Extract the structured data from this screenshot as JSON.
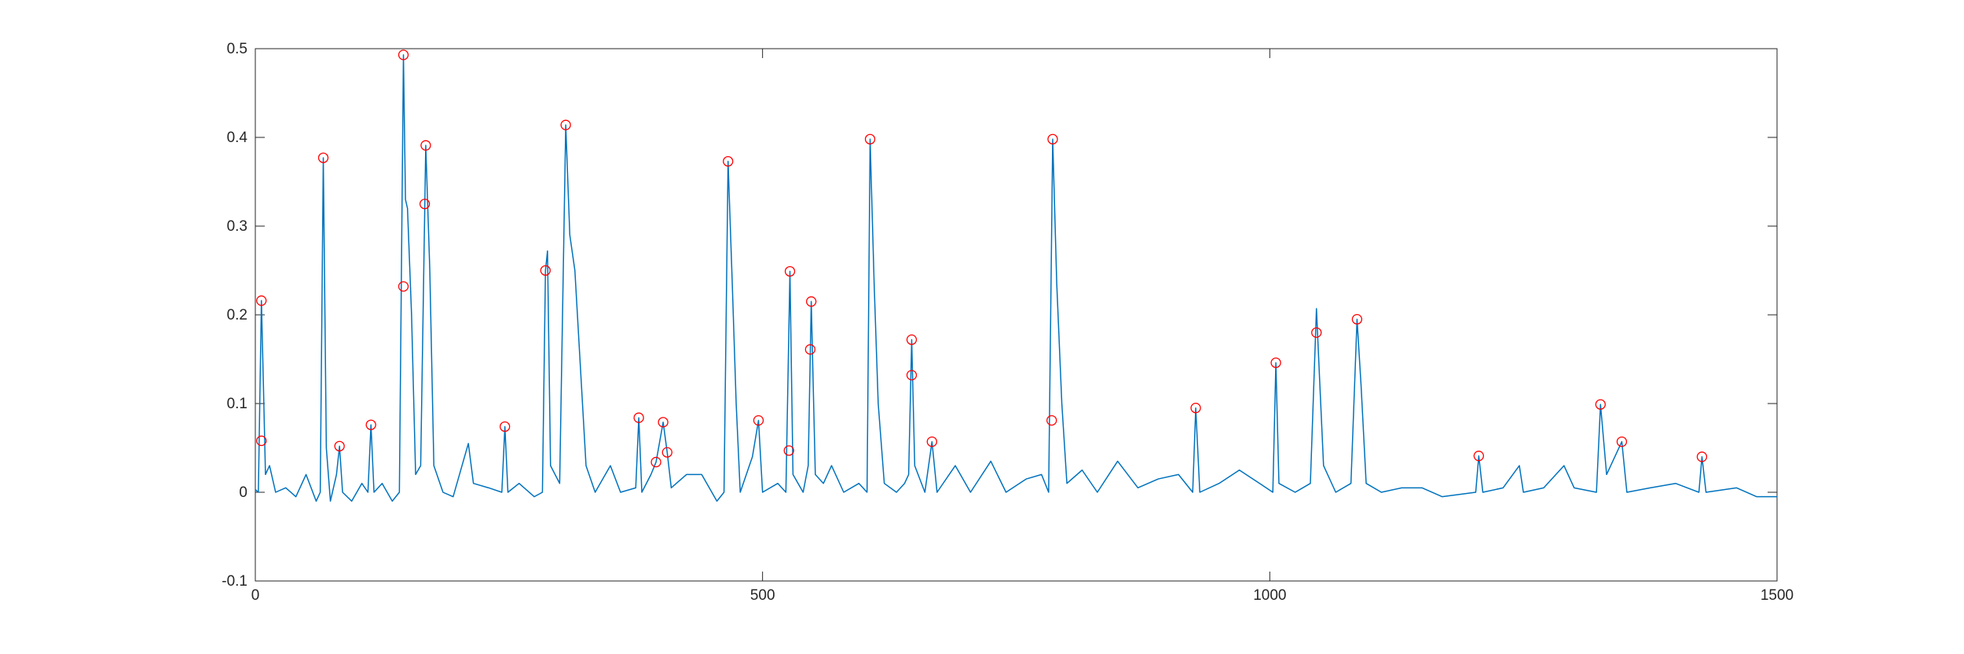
{
  "chart_data": {
    "type": "line",
    "xlim": [
      0,
      1500
    ],
    "xticks": [
      0,
      500,
      1000,
      1500
    ],
    "ylim": [
      -0.1,
      0.5
    ],
    "yticks": [
      -0.1,
      0,
      0.1,
      0.2,
      0.3,
      0.4,
      0.5
    ],
    "box": true,
    "series": [
      {
        "style": "line",
        "color": "#0072bd",
        "x": [
          0,
          3,
          6,
          8,
          10,
          14,
          20,
          30,
          40,
          50,
          60,
          64,
          67,
          70,
          74,
          80,
          83,
          86,
          95,
          105,
          111,
          114,
          117,
          125,
          135,
          142,
          146,
          148,
          150,
          154,
          158,
          163,
          168,
          172,
          176,
          185,
          195,
          210,
          215,
          230,
          243,
          246,
          249,
          260,
          275,
          283,
          286,
          288,
          291,
          300,
          306,
          310,
          315,
          320,
          326,
          335,
          350,
          360,
          375,
          378,
          381,
          390,
          395,
          402,
          406,
          410,
          425,
          440,
          455,
          462,
          466,
          470,
          474,
          478,
          490,
          496,
          500,
          515,
          523,
          527,
          530,
          540,
          545,
          548,
          552,
          560,
          568,
          580,
          595,
          603,
          606,
          610,
          614,
          620,
          632,
          640,
          644,
          647,
          650,
          660,
          667,
          672,
          690,
          705,
          725,
          740,
          760,
          775,
          782,
          786,
          790,
          795,
          800,
          815,
          830,
          850,
          870,
          890,
          910,
          924,
          927,
          931,
          950,
          970,
          990,
          1003,
          1006,
          1009,
          1025,
          1040,
          1046,
          1049,
          1053,
          1065,
          1080,
          1086,
          1090,
          1095,
          1110,
          1130,
          1150,
          1170,
          1203,
          1206,
          1210,
          1230,
          1246,
          1250,
          1270,
          1290,
          1300,
          1322,
          1326,
          1332,
          1347,
          1352,
          1375,
          1400,
          1423,
          1426,
          1430,
          1460,
          1480,
          1500
        ],
        "values": [
          0.003,
          0,
          0.216,
          0.12,
          0.02,
          0.03,
          0,
          0.005,
          -0.005,
          0.02,
          -0.01,
          0,
          0.377,
          0.05,
          -0.01,
          0.02,
          0.052,
          0,
          -0.01,
          0.01,
          0,
          0.076,
          0,
          0.01,
          -0.01,
          0,
          0.493,
          0.33,
          0.32,
          0.2,
          0.02,
          0.03,
          0.391,
          0.25,
          0.03,
          0,
          -0.005,
          0.055,
          0.01,
          0.005,
          0,
          0.074,
          0,
          0.01,
          -0.005,
          0,
          0.25,
          0.272,
          0.03,
          0.01,
          0.414,
          0.29,
          0.25,
          0.15,
          0.03,
          0,
          0.03,
          0,
          0.005,
          0.084,
          0,
          0.02,
          0.034,
          0.079,
          0.045,
          0.005,
          0.02,
          0.02,
          -0.01,
          0,
          0.373,
          0.24,
          0.1,
          0,
          0.04,
          0.081,
          0,
          0.01,
          0,
          0.249,
          0.02,
          0,
          0.03,
          0.215,
          0.02,
          0.01,
          0.03,
          0,
          0.01,
          0,
          0.398,
          0.235,
          0.1,
          0.01,
          0,
          0.01,
          0.02,
          0.172,
          0.03,
          0,
          0.057,
          0,
          0.03,
          0,
          0.035,
          0,
          0.015,
          0.02,
          0,
          0.398,
          0.235,
          0.1,
          0.01,
          0.025,
          0,
          0.035,
          0.005,
          0.015,
          0.02,
          0,
          0.095,
          0,
          0.01,
          0.025,
          0.01,
          0,
          0.146,
          0.01,
          0,
          0.01,
          0.207,
          0.13,
          0.03,
          0,
          0.01,
          0.195,
          0.12,
          0.01,
          0,
          0.005,
          0.005,
          -0.005,
          0,
          0.041,
          0,
          0.005,
          0.03,
          0,
          0.005,
          0.03,
          0.005,
          0,
          0.099,
          0.02,
          0.057,
          0,
          0.005,
          0.01,
          0,
          0.04,
          0,
          0.005,
          -0.005,
          -0.005
        ]
      },
      {
        "style": "circle",
        "color": "#ff0000",
        "x": [
          6,
          6,
          67,
          83,
          114,
          146,
          146,
          167,
          168,
          246,
          286,
          306,
          378,
          395,
          402,
          406,
          466,
          496,
          526,
          527,
          547,
          548,
          606,
          647,
          647,
          667,
          785,
          786,
          927,
          1006,
          1046,
          1086,
          1206,
          1326,
          1347,
          1426
        ],
        "values": [
          0.216,
          0.058,
          0.377,
          0.052,
          0.076,
          0.493,
          0.232,
          0.325,
          0.391,
          0.074,
          0.25,
          0.414,
          0.084,
          0.034,
          0.079,
          0.045,
          0.373,
          0.081,
          0.047,
          0.249,
          0.161,
          0.215,
          0.398,
          0.172,
          0.132,
          0.057,
          0.081,
          0.398,
          0.095,
          0.146,
          0.18,
          0.195,
          0.041,
          0.099,
          0.057,
          0.04
        ]
      }
    ]
  }
}
